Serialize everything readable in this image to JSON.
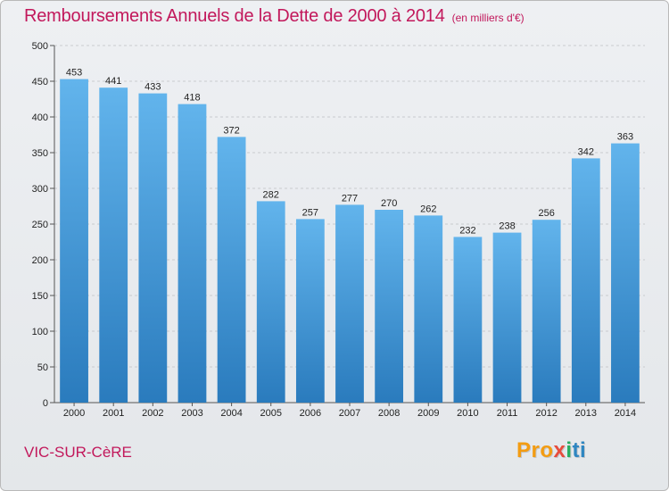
{
  "header": {
    "title": "Remboursements Annuels de la Dette de 2000 à 2014",
    "unit": "(en milliers d'€)"
  },
  "footer": {
    "commune": "VIC-SUR-CèRE",
    "logo": [
      "Pro",
      "x",
      "i",
      "ti"
    ]
  },
  "colors": {
    "title": "#c2185b",
    "bar_top": "#62b4ec",
    "bar_bottom": "#2a7bbd",
    "background": "#e8eaed"
  },
  "chart_data": {
    "type": "bar",
    "title": "Remboursements Annuels de la Dette de 2000 à 2014",
    "xlabel": "",
    "ylabel": "",
    "categories": [
      "2000",
      "2001",
      "2002",
      "2003",
      "2004",
      "2005",
      "2006",
      "2007",
      "2008",
      "2009",
      "2010",
      "2011",
      "2012",
      "2013",
      "2014"
    ],
    "values": [
      453,
      441,
      433,
      418,
      372,
      282,
      257,
      277,
      270,
      262,
      232,
      238,
      256,
      342,
      363
    ],
    "ylim": [
      0,
      500
    ],
    "yticks": [
      0,
      50,
      100,
      150,
      200,
      250,
      300,
      350,
      400,
      450,
      500
    ],
    "grid": true,
    "legend": "none"
  }
}
